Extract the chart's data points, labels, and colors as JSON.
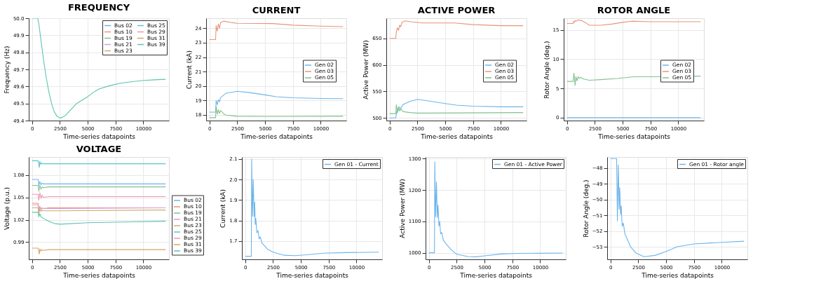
{
  "chart_data": [
    {
      "type": "line",
      "title": "FREQUENCY",
      "xlabel": "Time-series datapoints",
      "ylabel": "Frequency (Hz)",
      "xlim": [
        -300,
        12300
      ],
      "ylim": [
        49.4,
        50.0
      ],
      "xticks": [
        0,
        2500,
        5000,
        7500,
        10000
      ],
      "yticks": [
        49.4,
        49.5,
        49.6,
        49.7,
        49.8,
        49.9,
        {
          "value": 50,
          "label": "50.0"
        }
      ],
      "grid": true,
      "legend": "top right",
      "x": [
        0,
        500,
        600,
        800,
        1000,
        1250,
        1500,
        1750,
        2000,
        2250,
        2500,
        2750,
        3000,
        3500,
        4000,
        4500,
        5000,
        5500,
        6000,
        7000,
        8000,
        9000,
        10000,
        11000,
        12000
      ],
      "series": [
        {
          "name": "Bus 02",
          "color": "#6cb5ec",
          "values": [
            null,
            null,
            null,
            null,
            null,
            null,
            null,
            null,
            null,
            null,
            null,
            null,
            null,
            null,
            null,
            null,
            null,
            null,
            null,
            null,
            null,
            null,
            null,
            null,
            null
          ]
        },
        {
          "name": "Bus 10",
          "color": "#e8957a",
          "values": [
            null,
            null,
            null,
            null,
            null,
            null,
            null,
            null,
            null,
            null,
            null,
            null,
            null,
            null,
            null,
            null,
            null,
            null,
            null,
            null,
            null,
            null,
            null,
            null,
            null
          ]
        },
        {
          "name": "Bus 19",
          "color": "#84c18e",
          "values": [
            null,
            null,
            null,
            null,
            null,
            null,
            null,
            null,
            null,
            null,
            null,
            null,
            null,
            null,
            null,
            null,
            null,
            null,
            null,
            null,
            null,
            null,
            null,
            null,
            null
          ]
        },
        {
          "name": "Bus 21",
          "color": "#d69ee0",
          "values": [
            null,
            null,
            null,
            null,
            null,
            null,
            null,
            null,
            null,
            null,
            null,
            null,
            null,
            null,
            null,
            null,
            null,
            null,
            null,
            null,
            null,
            null,
            null,
            null,
            null
          ]
        },
        {
          "name": "Bus 23",
          "color": "#c9b06a",
          "values": [
            null,
            null,
            null,
            null,
            null,
            null,
            null,
            null,
            null,
            null,
            null,
            null,
            null,
            null,
            null,
            null,
            null,
            null,
            null,
            null,
            null,
            null,
            null,
            null,
            null
          ]
        },
        {
          "name": "Bus 25",
          "color": "#5cc5c8",
          "values": [
            null,
            null,
            null,
            null,
            null,
            null,
            null,
            null,
            null,
            null,
            null,
            null,
            null,
            null,
            null,
            null,
            null,
            null,
            null,
            null,
            null,
            null,
            null,
            null,
            null
          ]
        },
        {
          "name": "Bus 29",
          "color": "#f194b6",
          "values": [
            null,
            null,
            null,
            null,
            null,
            null,
            null,
            null,
            null,
            null,
            null,
            null,
            null,
            null,
            null,
            null,
            null,
            null,
            null,
            null,
            null,
            null,
            null,
            null,
            null
          ]
        },
        {
          "name": "Bus 31",
          "color": "#d8a466",
          "values": [
            null,
            null,
            null,
            null,
            null,
            null,
            null,
            null,
            null,
            null,
            null,
            null,
            null,
            null,
            null,
            null,
            null,
            null,
            null,
            null,
            null,
            null,
            null,
            null,
            null
          ]
        },
        {
          "name": "Bus 39",
          "color": "#5cc4b0",
          "values": [
            50.0,
            50.0,
            49.97,
            49.87,
            49.77,
            49.66,
            49.57,
            49.5,
            49.45,
            49.425,
            49.415,
            49.42,
            49.43,
            49.465,
            49.5,
            49.52,
            49.54,
            49.565,
            49.585,
            49.605,
            49.62,
            49.628,
            49.635,
            49.639,
            49.642
          ]
        }
      ]
    },
    {
      "type": "line",
      "title": "CURRENT",
      "xlabel": "Time-series datapoints",
      "ylabel": "Current (kA)",
      "xlim": [
        -300,
        12300
      ],
      "ylim": [
        17.6,
        24.7
      ],
      "xticks": [
        0,
        2500,
        5000,
        7500,
        10000
      ],
      "yticks": [
        18,
        19,
        20,
        21,
        22,
        23,
        24
      ],
      "grid": true,
      "legend": "right",
      "series": [
        {
          "name": "Gen 02",
          "color": "#6cb5ec",
          "x": [
            0,
            550,
            600,
            700,
            800,
            900,
            1000,
            1500,
            2500,
            3500,
            5000,
            6000,
            7500,
            10000,
            12000
          ],
          "values": [
            18.18,
            18.18,
            19.0,
            18.7,
            19.05,
            18.9,
            19.2,
            19.5,
            19.63,
            19.55,
            19.38,
            19.25,
            19.18,
            19.13,
            19.12
          ]
        },
        {
          "name": "Gen 03",
          "color": "#e8957a",
          "x": [
            0,
            550,
            600,
            700,
            800,
            900,
            1000,
            1300,
            2000,
            2500,
            5700,
            7500,
            10000,
            12000
          ],
          "values": [
            23.22,
            23.22,
            24.2,
            23.8,
            24.3,
            24.0,
            24.4,
            24.5,
            24.4,
            24.35,
            24.33,
            24.22,
            24.15,
            24.12
          ]
        },
        {
          "name": "Gen 05",
          "color": "#84c18e",
          "x": [
            0,
            550,
            600,
            700,
            800,
            900,
            1000,
            1300,
            1500,
            2500,
            5000,
            12000
          ],
          "values": [
            17.8,
            17.8,
            18.58,
            18.05,
            18.35,
            18.1,
            18.3,
            18.05,
            17.98,
            17.9,
            17.88,
            17.9
          ]
        }
      ]
    },
    {
      "type": "line",
      "title": "ACTIVE POWER",
      "xlabel": "Time-series datapoints",
      "ylabel": "Active Power (MW)",
      "xlim": [
        -300,
        12300
      ],
      "ylim": [
        495,
        688
      ],
      "xticks": [
        0,
        2500,
        5000,
        7500,
        10000
      ],
      "yticks": [
        500,
        550,
        600,
        650
      ],
      "grid": true,
      "legend": "right",
      "series": [
        {
          "name": "Gen 02",
          "color": "#6cb5ec",
          "x": [
            0,
            550,
            650,
            700,
            850,
            1000,
            1200,
            1800,
            2500,
            3500,
            5000,
            6000,
            7500,
            10000,
            12000
          ],
          "values": [
            500,
            500,
            513,
            510,
            520,
            518,
            525,
            531,
            535,
            532,
            527,
            524,
            522,
            521,
            521
          ]
        },
        {
          "name": "Gen 03",
          "color": "#e8957a",
          "x": [
            0,
            550,
            600,
            700,
            800,
            900,
            1000,
            1100,
            1400,
            2000,
            3000,
            5800,
            7500,
            10000,
            12000
          ],
          "values": [
            650,
            650,
            662,
            670,
            665,
            675,
            672,
            680,
            683,
            681,
            679,
            679,
            676,
            674,
            674
          ]
        },
        {
          "name": "Gen 05",
          "color": "#84c18e",
          "x": [
            0,
            550,
            600,
            700,
            800,
            900,
            1000,
            1200,
            1800,
            2500,
            12000
          ],
          "values": [
            508,
            508,
            525,
            512,
            521,
            513,
            517,
            512,
            510,
            509,
            510
          ]
        }
      ]
    },
    {
      "type": "line",
      "title": "ROTOR ANGLE",
      "xlabel": "Time-series datapoints",
      "ylabel": "Rotor Angle (deg.)",
      "xlim": [
        -300,
        12300
      ],
      "ylim": [
        -0.5,
        17
      ],
      "xticks": [
        0,
        2500,
        5000,
        7500,
        10000
      ],
      "yticks": [
        0,
        5,
        10,
        15
      ],
      "grid": true,
      "legend": "right",
      "series": [
        {
          "name": "Gen 02",
          "color": "#6cb5ec",
          "x": [
            0,
            12000
          ],
          "values": [
            0,
            0
          ]
        },
        {
          "name": "Gen 03",
          "color": "#e8957a",
          "x": [
            0,
            550,
            600,
            650,
            750,
            850,
            1000,
            1300,
            1700,
            2000,
            3000,
            4000,
            5000,
            5800,
            7500,
            12000
          ],
          "values": [
            16.1,
            16.1,
            16.5,
            16.3,
            16.6,
            16.5,
            16.7,
            16.6,
            16.2,
            15.8,
            15.8,
            16.0,
            16.3,
            16.5,
            16.4,
            16.4
          ]
        },
        {
          "name": "Gen 05",
          "color": "#84c18e",
          "x": [
            0,
            550,
            620,
            700,
            720,
            800,
            900,
            1000,
            1100,
            1200,
            1500,
            2000,
            3000,
            4500,
            6000,
            7500,
            12000
          ],
          "values": [
            6.2,
            6.2,
            7.6,
            6.0,
            5.5,
            7.0,
            6.3,
            7.0,
            6.7,
            6.9,
            6.6,
            6.4,
            6.5,
            6.7,
            7.0,
            7.0,
            7.1
          ]
        }
      ]
    },
    {
      "type": "line",
      "title": "VOLTAGE",
      "xlabel": "Time-series datapoints",
      "ylabel": "Voltage (p.u.)",
      "xlim": [
        -300,
        12300
      ],
      "ylim": [
        0.967,
        1.104
      ],
      "xticks": [
        0,
        2500,
        5000,
        7500,
        10000
      ],
      "yticks": [
        0.99,
        1.02,
        1.05,
        1.08
      ],
      "grid": true,
      "legend": "bottom right",
      "series": [
        {
          "name": "Bus 02",
          "color": "#6cb5ec",
          "x": [
            0,
            550,
            600,
            700,
            800,
            900,
            1000,
            1500,
            2500,
            12000
          ],
          "values": [
            1.074,
            1.074,
            1.066,
            1.071,
            1.067,
            1.069,
            1.068,
            1.068,
            1.068,
            1.068
          ]
        },
        {
          "name": "Bus 10",
          "color": "#e8957a",
          "x": [
            0,
            550,
            600,
            700,
            800,
            900,
            1000,
            1500,
            2500,
            12000
          ],
          "values": [
            1.042,
            1.042,
            1.032,
            1.038,
            1.034,
            1.036,
            1.035,
            1.036,
            1.036,
            1.036
          ]
        },
        {
          "name": "Bus 19",
          "color": "#84c18e",
          "x": [
            0,
            550,
            600,
            700,
            800,
            900,
            1000,
            1500,
            2500,
            12000
          ],
          "values": [
            1.066,
            1.066,
            1.058,
            1.066,
            1.061,
            1.064,
            1.063,
            1.064,
            1.064,
            1.064
          ]
        },
        {
          "name": "Bus 21",
          "color": "#d69ee0",
          "x": [
            0,
            550,
            600,
            700,
            800,
            900,
            1000,
            1500,
            2500,
            12000
          ],
          "values": [
            1.04,
            1.04,
            1.031,
            1.037,
            1.034,
            1.036,
            1.035,
            1.035,
            1.035,
            1.036
          ]
        },
        {
          "name": "Bus 23",
          "color": "#c9b06a",
          "x": [
            0,
            550,
            600,
            700,
            800,
            900,
            1000,
            1500,
            2500,
            12000
          ],
          "values": [
            1.036,
            1.036,
            1.028,
            1.034,
            1.031,
            1.033,
            1.032,
            1.032,
            1.032,
            1.033
          ]
        },
        {
          "name": "Bus 25",
          "color": "#5cc5c8",
          "x": [
            0,
            550,
            650,
            700,
            800,
            900,
            1000,
            1500,
            2500,
            12000
          ],
          "values": [
            1.099,
            1.099,
            1.09,
            1.098,
            1.094,
            1.096,
            1.095,
            1.095,
            1.095,
            1.095
          ]
        },
        {
          "name": "Bus 29",
          "color": "#f194b6",
          "x": [
            0,
            550,
            600,
            700,
            800,
            900,
            1000,
            1500,
            2500,
            12000
          ],
          "values": [
            1.054,
            1.054,
            1.046,
            1.056,
            1.049,
            1.053,
            1.05,
            1.051,
            1.051,
            1.051
          ]
        },
        {
          "name": "Bus 31",
          "color": "#d8a466",
          "x": [
            0,
            550,
            650,
            700,
            800,
            900,
            1000,
            1500,
            2500,
            12000
          ],
          "values": [
            0.982,
            0.982,
            0.974,
            0.981,
            0.978,
            0.98,
            0.979,
            0.98,
            0.98,
            0.98
          ]
        },
        {
          "name": "Bus 39",
          "color": "#5cc4b0",
          "x": [
            0,
            550,
            600,
            700,
            800,
            1000,
            1500,
            2000,
            2500,
            5000,
            8000,
            12000
          ],
          "values": [
            1.03,
            1.03,
            1.024,
            1.028,
            1.024,
            1.022,
            1.018,
            1.015,
            1.014,
            1.016,
            1.017,
            1.018
          ]
        }
      ]
    },
    {
      "type": "line",
      "xlabel": "Time-series datapoints",
      "ylabel": "Current (kA)",
      "xlim": [
        -300,
        12300
      ],
      "ylim": [
        1.61,
        2.11
      ],
      "xticks": [
        0,
        2500,
        5000,
        7500,
        10000
      ],
      "yticks": [
        1.7,
        1.8,
        1.9,
        {
          "value": 2,
          "label": "2.0"
        },
        2.1
      ],
      "grid": true,
      "legend": "top right",
      "series": [
        {
          "name": "Gen 01 - Current",
          "color": "#6cb5ec",
          "x": [
            0,
            550,
            580,
            650,
            720,
            800,
            850,
            900,
            950,
            1050,
            1150,
            1250,
            1350,
            1500,
            2000,
            2500,
            3500,
            4500,
            5500,
            7000,
            9000,
            12000
          ],
          "values": [
            1.625,
            1.625,
            2.1,
            1.82,
            2.0,
            1.82,
            1.89,
            1.78,
            1.81,
            1.74,
            1.75,
            1.71,
            1.72,
            1.69,
            1.66,
            1.645,
            1.63,
            1.628,
            1.632,
            1.64,
            1.643,
            1.645
          ]
        }
      ]
    },
    {
      "type": "line",
      "xlabel": "Time-series datapoints",
      "ylabel": "Active Power (MW)",
      "xlim": [
        -300,
        12300
      ],
      "ylim": [
        979,
        1305
      ],
      "xticks": [
        0,
        2500,
        5000,
        7500,
        10000
      ],
      "yticks": [
        1000,
        1100,
        1200,
        1300
      ],
      "grid": true,
      "legend": "top right",
      "series": [
        {
          "name": "Gen 01 - Active Power",
          "color": "#6cb5ec",
          "x": [
            0,
            500,
            530,
            600,
            680,
            750,
            820,
            900,
            970,
            1050,
            1150,
            1300,
            1500,
            2000,
            2500,
            3500,
            4200,
            5000,
            6500,
            8000,
            12000
          ],
          "values": [
            1000,
            1000,
            1290,
            1115,
            1225,
            1112,
            1152,
            1085,
            1100,
            1060,
            1065,
            1040,
            1030,
            1010,
            995,
            988,
            987,
            990,
            996,
            998,
            999
          ]
        }
      ]
    },
    {
      "type": "line",
      "xlabel": "Time-series datapoints",
      "ylabel": "Rotor Angle (deg.)",
      "xlim": [
        -300,
        12300
      ],
      "ylim": [
        -53.8,
        -47.3
      ],
      "xticks": [
        0,
        2500,
        5000,
        7500,
        10000
      ],
      "yticks": [
        -53,
        -52,
        -51,
        -50,
        -49,
        -48
      ],
      "grid": true,
      "legend": "top right",
      "series": [
        {
          "name": "Gen 01 - Rotor angle",
          "color": "#6cb5ec",
          "x": [
            0,
            550,
            620,
            700,
            780,
            830,
            900,
            960,
            1050,
            1150,
            1300,
            1500,
            1800,
            2300,
            3000,
            4000,
            5000,
            6000,
            7500,
            10000,
            12000
          ],
          "values": [
            -47.4,
            -47.4,
            -51.35,
            -47.8,
            -50.6,
            -49.25,
            -50.95,
            -50.4,
            -51.7,
            -51.5,
            -52.2,
            -52.5,
            -53.0,
            -53.4,
            -53.63,
            -53.55,
            -53.3,
            -53.0,
            -52.82,
            -52.72,
            -52.65
          ]
        }
      ]
    }
  ]
}
